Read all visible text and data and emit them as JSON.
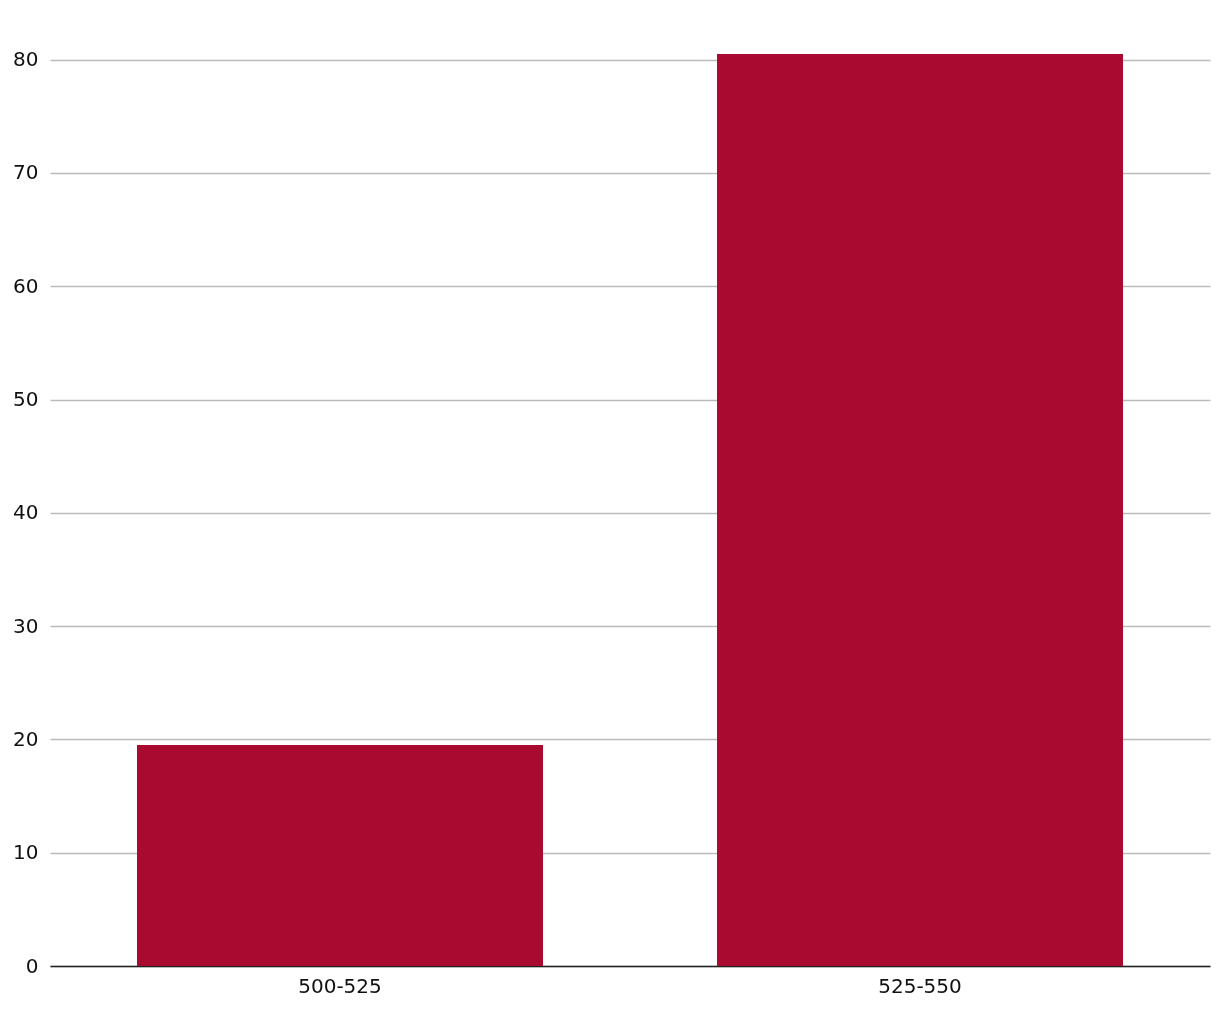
{
  "chart_data": {
    "type": "bar",
    "categories": [
      "500-525",
      "525-550"
    ],
    "values": [
      19.5,
      80.5
    ],
    "color": "#a80b2f",
    "ylim": [
      0,
      80.5
    ],
    "yticks": [
      0,
      10,
      20,
      30,
      40,
      50,
      60,
      70,
      80
    ],
    "grid": "y"
  }
}
